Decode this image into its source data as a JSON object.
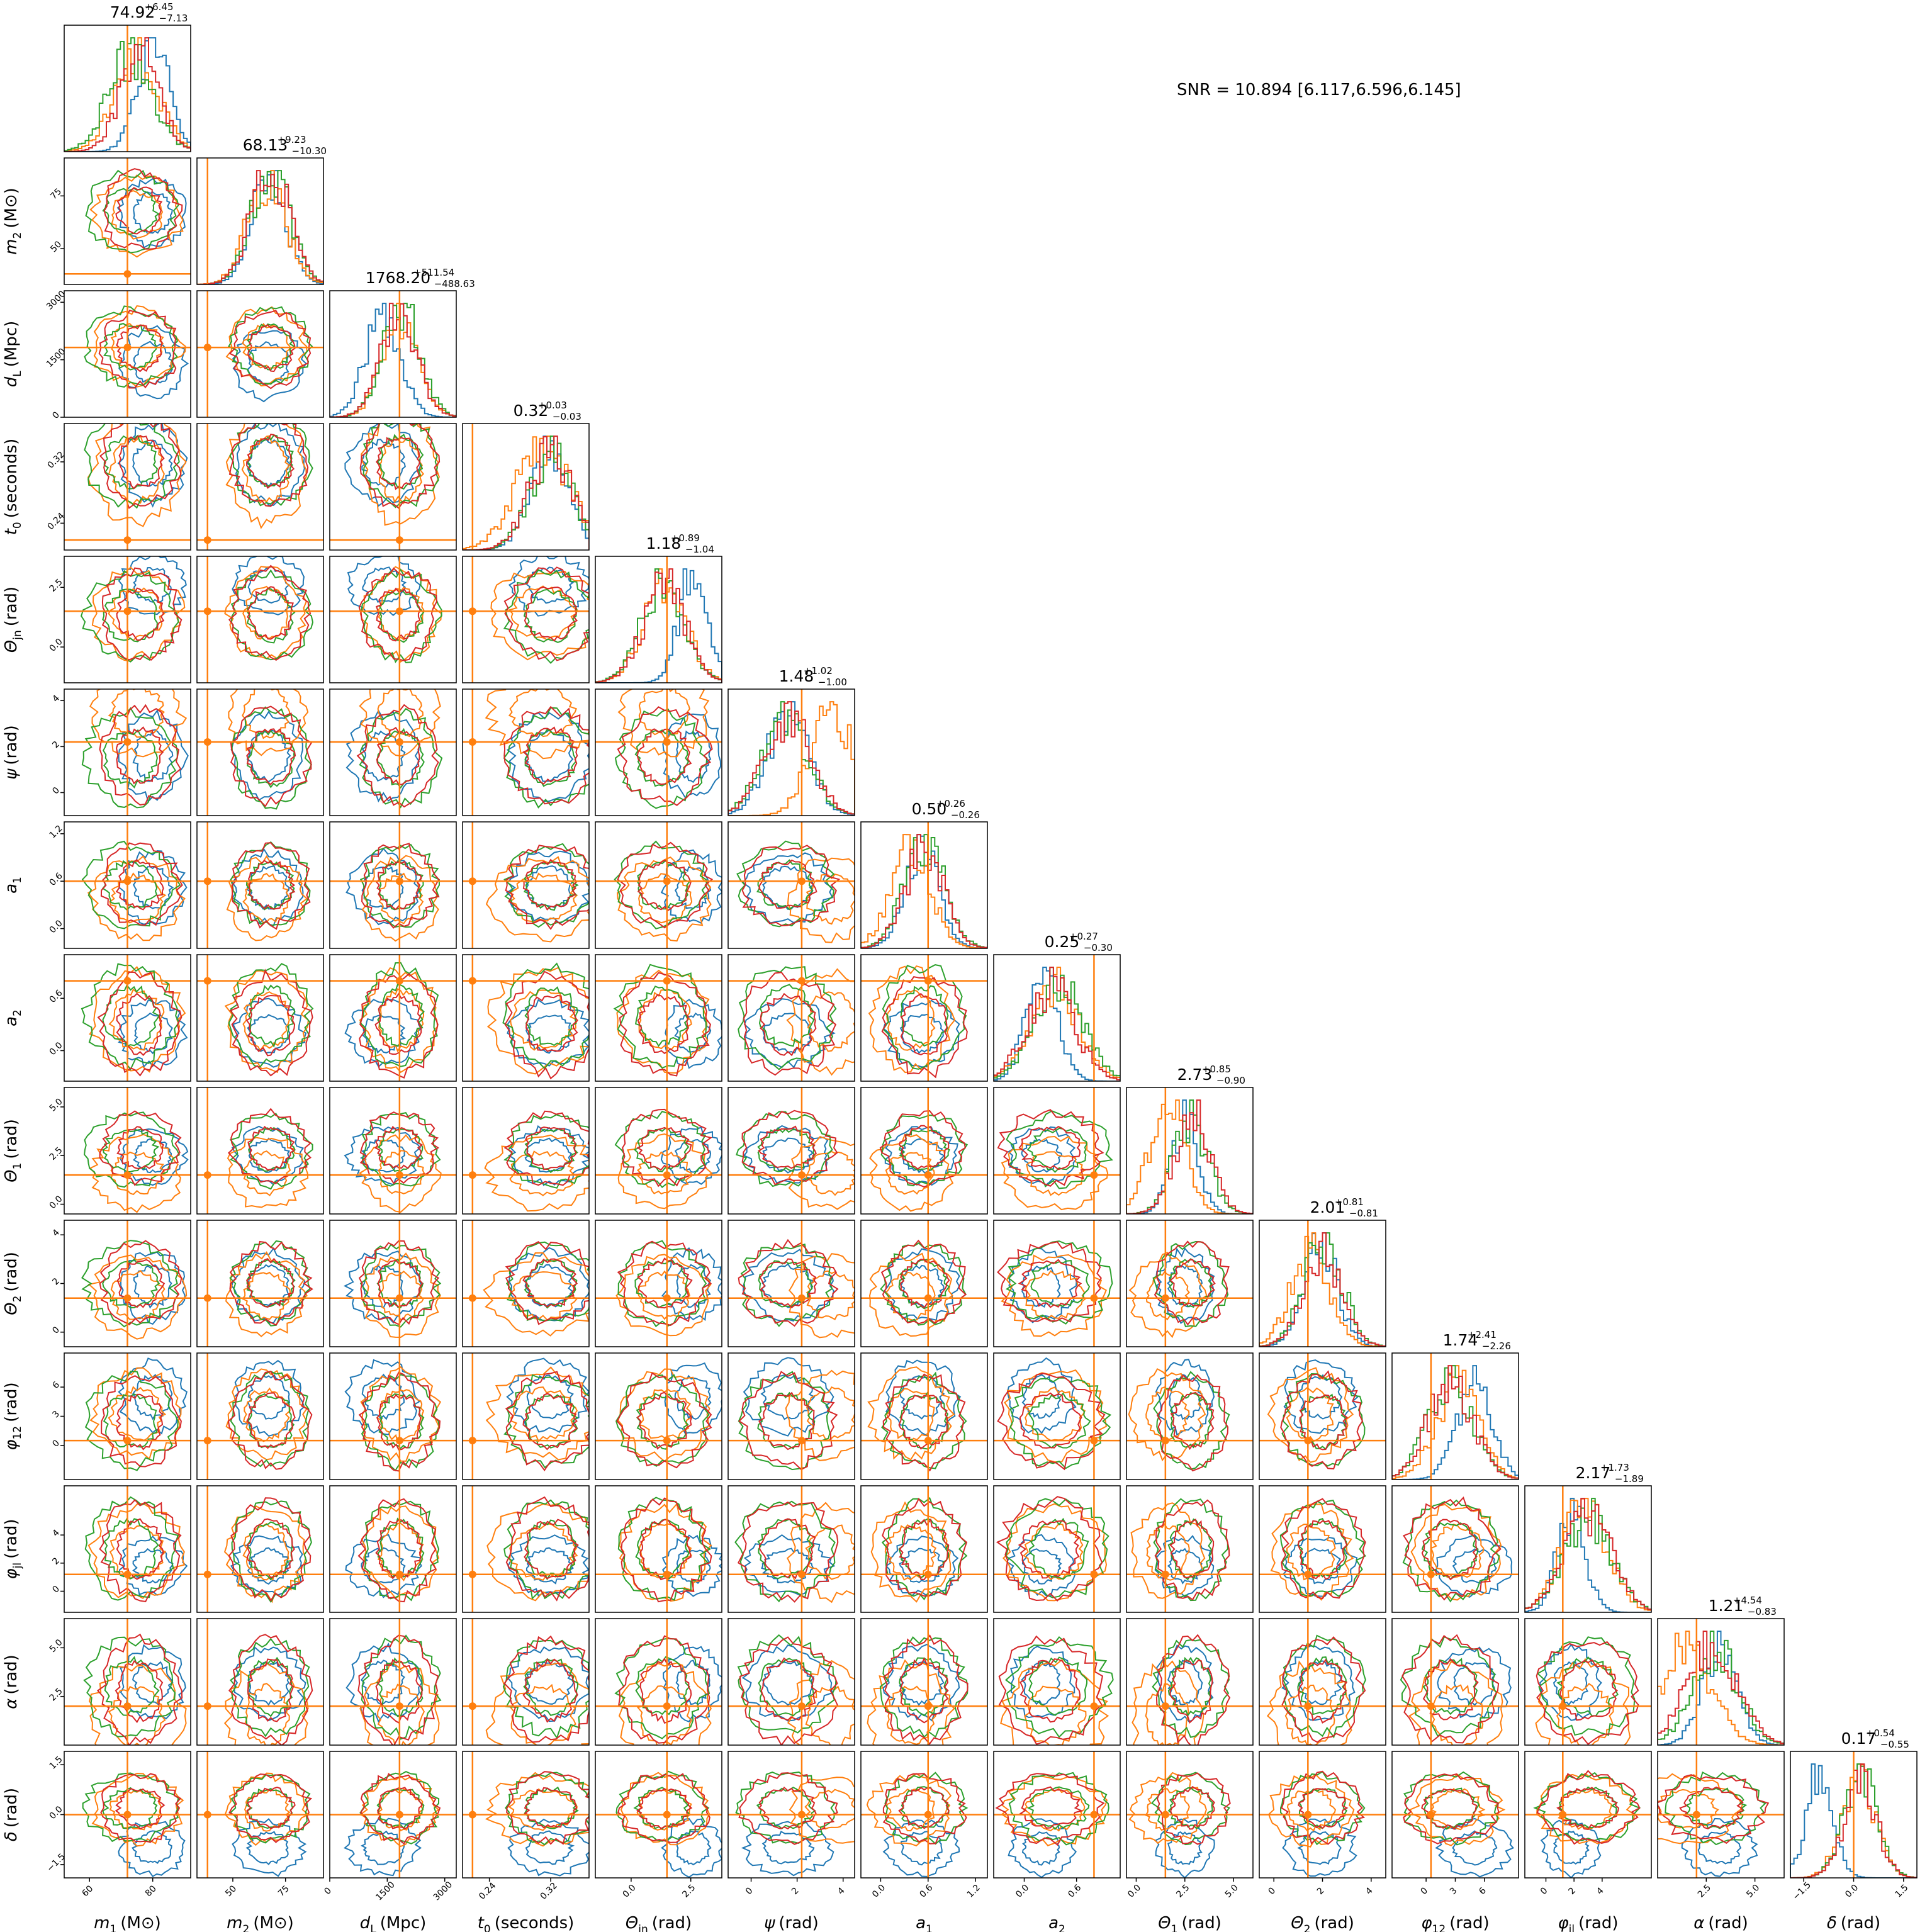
{
  "snr_text": "SNR = 10.894 [6.117,6.596,6.145]",
  "chart_data": {
    "type": "corner",
    "series_colors": [
      "#1f77b4",
      "#ff7f0e",
      "#2ca02c",
      "#d62728"
    ],
    "truth_color": "#ff7f0e",
    "parameters": [
      {
        "id": "m1",
        "label_main": "m",
        "label_sub": "1",
        "label_unit": "(M⊙)",
        "summary_value": "74.92",
        "summary_plus": "+6.45",
        "summary_minus": "−7.13",
        "range": [
          52,
          92
        ],
        "truth": 72,
        "ticks": [
          {
            "v": 60,
            "t": "60"
          },
          {
            "v": 80,
            "t": "80"
          }
        ],
        "centers": [
          80,
          75,
          73,
          76
        ],
        "spreads": [
          5,
          7,
          7,
          6
        ]
      },
      {
        "id": "m2",
        "label_main": "m",
        "label_sub": "2",
        "label_unit": "(M⊙)",
        "summary_value": "68.13",
        "summary_plus": "+9.23",
        "summary_minus": "−10.30",
        "range": [
          33,
          93
        ],
        "truth": 38,
        "ticks": [
          {
            "v": 50,
            "t": "50"
          },
          {
            "v": 75,
            "t": "75"
          }
        ],
        "centers": [
          67,
          66,
          68,
          68
        ],
        "spreads": [
          8,
          9,
          9,
          9
        ]
      },
      {
        "id": "dL",
        "label_main": "d",
        "label_sub": "L",
        "label_unit": "(Mpc)",
        "summary_value": "1768.20",
        "summary_plus": "+511.54",
        "summary_minus": "−488.63",
        "range": [
          0,
          3300
        ],
        "truth": 1820,
        "ticks": [
          {
            "v": 0,
            "t": "0"
          },
          {
            "v": 1500,
            "t": "1500"
          },
          {
            "v": 3000,
            "t": "3000"
          }
        ],
        "centers": [
          1400,
          1850,
          1850,
          1800
        ],
        "spreads": [
          450,
          480,
          480,
          480
        ]
      },
      {
        "id": "t0",
        "label_main": "t",
        "label_sub": "0",
        "label_unit": "(seconds)",
        "summary_value": "0.32",
        "summary_plus": "+0.03",
        "summary_minus": "−0.03",
        "range": [
          0.205,
          0.37
        ],
        "truth": 0.218,
        "ticks": [
          {
            "v": 0.24,
            "t": "0.24"
          },
          {
            "v": 0.32,
            "t": "0.32"
          }
        ],
        "centers": [
          0.318,
          0.31,
          0.32,
          0.32
        ],
        "spreads": [
          0.025,
          0.035,
          0.028,
          0.028
        ]
      },
      {
        "id": "theta_jn",
        "label_main": "Θ",
        "label_sub": "jn",
        "label_unit": "(rad)",
        "summary_value": "1.18",
        "summary_plus": "+0.89",
        "summary_minus": "−1.04",
        "range": [
          -1.5,
          3.8
        ],
        "truth": 1.5,
        "ticks": [
          {
            "v": 0.0,
            "t": "0.0"
          },
          {
            "v": 2.5,
            "t": "2.5"
          }
        ],
        "centers": [
          2.6,
          1.4,
          1.3,
          1.4
        ],
        "spreads": [
          0.6,
          0.9,
          0.9,
          0.9
        ]
      },
      {
        "id": "psi",
        "label_main": "ψ",
        "label_sub": "",
        "label_unit": "(rad)",
        "summary_value": "1.48",
        "summary_plus": "+1.02",
        "summary_minus": "−1.00",
        "range": [
          -1.0,
          4.5
        ],
        "truth": 2.2,
        "ticks": [
          {
            "v": 0,
            "t": "0"
          },
          {
            "v": 2,
            "t": "2"
          },
          {
            "v": 4,
            "t": "4"
          }
        ],
        "centers": [
          1.6,
          3.5,
          1.5,
          1.6
        ],
        "spreads": [
          0.9,
          0.9,
          1.0,
          1.0
        ]
      },
      {
        "id": "a1",
        "label_main": "a",
        "label_sub": "1",
        "label_unit": "",
        "summary_value": "0.50",
        "summary_plus": "+0.26",
        "summary_minus": "−0.26",
        "range": [
          -0.25,
          1.35
        ],
        "truth": 0.6,
        "ticks": [
          {
            "v": 0.0,
            "t": "0.0"
          },
          {
            "v": 0.6,
            "t": "0.6"
          },
          {
            "v": 1.2,
            "t": "1.2"
          }
        ],
        "centers": [
          0.52,
          0.38,
          0.55,
          0.55
        ],
        "spreads": [
          0.22,
          0.25,
          0.25,
          0.25
        ]
      },
      {
        "id": "a2",
        "label_main": "a",
        "label_sub": "2",
        "label_unit": "",
        "summary_value": "0.25",
        "summary_plus": "+0.27",
        "summary_minus": "−0.30",
        "range": [
          -0.35,
          1.1
        ],
        "truth": 0.8,
        "ticks": [
          {
            "v": 0.0,
            "t": "0.0"
          },
          {
            "v": 0.6,
            "t": "0.6"
          }
        ],
        "centers": [
          0.2,
          0.35,
          0.4,
          0.3
        ],
        "spreads": [
          0.18,
          0.28,
          0.28,
          0.28
        ]
      },
      {
        "id": "theta1",
        "label_main": "Θ",
        "label_sub": "1",
        "label_unit": "(rad)",
        "summary_value": "2.73",
        "summary_plus": "+0.85",
        "summary_minus": "−0.90",
        "range": [
          -0.5,
          6.0
        ],
        "truth": 1.5,
        "ticks": [
          {
            "v": 0.0,
            "t": "0.0"
          },
          {
            "v": 2.5,
            "t": "2.5"
          },
          {
            "v": 5.0,
            "t": "5.0"
          }
        ],
        "centers": [
          2.5,
          1.6,
          2.8,
          2.9
        ],
        "spreads": [
          0.7,
          0.9,
          0.9,
          0.9
        ]
      },
      {
        "id": "theta2",
        "label_main": "Θ",
        "label_sub": "2",
        "label_unit": "(rad)",
        "summary_value": "2.01",
        "summary_plus": "+0.81",
        "summary_minus": "−0.81",
        "range": [
          -0.6,
          4.6
        ],
        "truth": 1.4,
        "ticks": [
          {
            "v": 0,
            "t": "0"
          },
          {
            "v": 2,
            "t": "2"
          },
          {
            "v": 4,
            "t": "4"
          }
        ],
        "centers": [
          1.9,
          1.5,
          2.0,
          2.0
        ],
        "spreads": [
          0.7,
          0.8,
          0.8,
          0.8
        ]
      },
      {
        "id": "phi12",
        "label_main": "φ",
        "label_sub": "12",
        "label_unit": "(rad)",
        "summary_value": "1.74",
        "summary_plus": "+2.41",
        "summary_minus": "−2.26",
        "range": [
          -3.5,
          9.5
        ],
        "truth": 0.5,
        "ticks": [
          {
            "v": 0,
            "t": "0"
          },
          {
            "v": 3,
            "t": "3"
          },
          {
            "v": 6,
            "t": "6"
          }
        ],
        "centers": [
          5.0,
          3.2,
          2.5,
          2.5
        ],
        "spreads": [
          1.8,
          2.2,
          2.3,
          2.3
        ]
      },
      {
        "id": "phijl",
        "label_main": "φ",
        "label_sub": "jl",
        "label_unit": "(rad)",
        "summary_value": "2.17",
        "summary_plus": "+1.73",
        "summary_minus": "−1.89",
        "range": [
          -1.5,
          7.5
        ],
        "truth": 1.2,
        "ticks": [
          {
            "v": 0,
            "t": "0"
          },
          {
            "v": 2,
            "t": "2"
          },
          {
            "v": 4,
            "t": "4"
          }
        ],
        "centers": [
          1.8,
          2.8,
          3.0,
          3.0
        ],
        "spreads": [
          1.0,
          1.6,
          1.7,
          1.7
        ]
      },
      {
        "id": "alpha",
        "label_main": "α",
        "label_sub": "",
        "label_unit": "(rad)",
        "summary_value": "1.21",
        "summary_plus": "+4.54",
        "summary_minus": "−0.83",
        "range": [
          0,
          6.5
        ],
        "truth": 2.0,
        "ticks": [
          {
            "v": 2.5,
            "t": "2.5"
          },
          {
            "v": 5.0,
            "t": "5.0"
          }
        ],
        "centers": [
          3.2,
          1.5,
          3.0,
          2.8
        ],
        "spreads": [
          0.9,
          1.3,
          1.2,
          1.3
        ]
      },
      {
        "id": "delta",
        "label_main": "δ",
        "label_sub": "",
        "label_unit": "(rad)",
        "summary_value": "0.17",
        "summary_plus": "+0.54",
        "summary_minus": "−0.55",
        "range": [
          -1.9,
          1.9
        ],
        "truth": 0.0,
        "ticks": [
          {
            "v": -1.5,
            "t": "−1.5"
          },
          {
            "v": 0.0,
            "t": "0.0"
          },
          {
            "v": 1.5,
            "t": "1.5"
          }
        ],
        "centers": [
          -1.0,
          0.15,
          0.2,
          0.2
        ],
        "spreads": [
          0.4,
          0.5,
          0.5,
          0.5
        ]
      }
    ]
  }
}
